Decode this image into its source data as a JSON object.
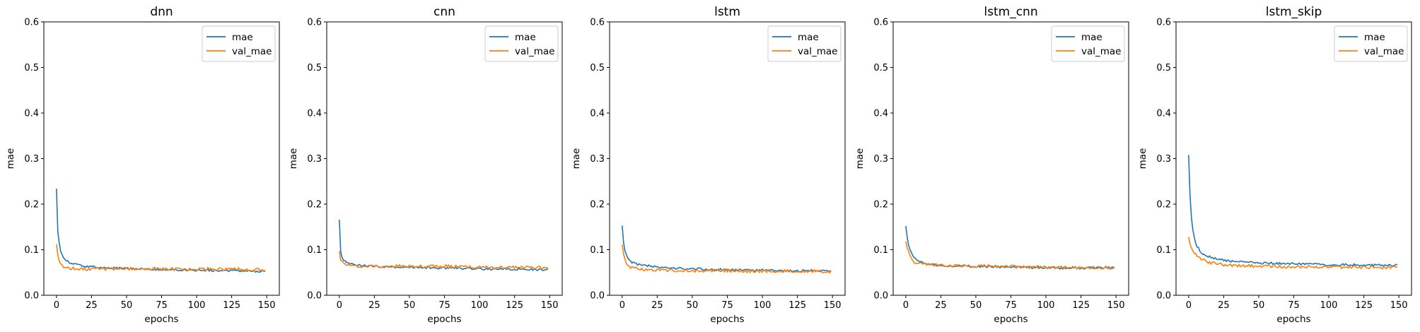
{
  "chart_data": [
    {
      "type": "line",
      "title": "dnn",
      "xlabel": "epochs",
      "ylabel": "mae",
      "xlim": [
        -9,
        159
      ],
      "ylim": [
        0.0,
        0.6
      ],
      "xticks": [
        0,
        25,
        50,
        75,
        100,
        125,
        150
      ],
      "yticks": [
        0.0,
        0.1,
        0.2,
        0.3,
        0.4,
        0.5,
        0.6
      ],
      "legend_position": "top-right",
      "grid": false,
      "x": [
        0,
        1,
        2,
        3,
        4,
        5,
        6,
        8,
        10,
        12,
        15,
        20,
        25,
        30,
        40,
        50,
        60,
        75,
        90,
        100,
        110,
        125,
        135,
        149
      ],
      "series": [
        {
          "name": "mae",
          "color": "#1f77b4",
          "values": [
            0.234,
            0.138,
            0.112,
            0.097,
            0.089,
            0.083,
            0.079,
            0.074,
            0.071,
            0.069,
            0.067,
            0.064,
            0.062,
            0.061,
            0.06,
            0.059,
            0.058,
            0.057,
            0.056,
            0.055,
            0.055,
            0.054,
            0.053,
            0.053
          ]
        },
        {
          "name": "val_mae",
          "color": "#ff7f0e",
          "values": [
            0.112,
            0.088,
            0.076,
            0.07,
            0.066,
            0.063,
            0.062,
            0.06,
            0.059,
            0.059,
            0.058,
            0.058,
            0.058,
            0.058,
            0.058,
            0.058,
            0.058,
            0.058,
            0.057,
            0.057,
            0.058,
            0.057,
            0.057,
            0.056
          ]
        }
      ]
    },
    {
      "type": "line",
      "title": "cnn",
      "xlabel": "epochs",
      "ylabel": "mae",
      "xlim": [
        -9,
        159
      ],
      "ylim": [
        0.0,
        0.6
      ],
      "xticks": [
        0,
        25,
        50,
        75,
        100,
        125,
        150
      ],
      "yticks": [
        0.0,
        0.1,
        0.2,
        0.3,
        0.4,
        0.5,
        0.6
      ],
      "legend_position": "top-right",
      "grid": false,
      "x": [
        0,
        1,
        2,
        3,
        4,
        5,
        6,
        8,
        10,
        12,
        15,
        20,
        25,
        30,
        40,
        50,
        60,
        75,
        90,
        100,
        110,
        125,
        135,
        149
      ],
      "series": [
        {
          "name": "mae",
          "color": "#1f77b4",
          "values": [
            0.166,
            0.095,
            0.082,
            0.077,
            0.074,
            0.072,
            0.071,
            0.069,
            0.068,
            0.067,
            0.066,
            0.065,
            0.064,
            0.063,
            0.062,
            0.062,
            0.061,
            0.06,
            0.059,
            0.058,
            0.058,
            0.057,
            0.057,
            0.056
          ]
        },
        {
          "name": "val_mae",
          "color": "#ff7f0e",
          "values": [
            0.097,
            0.077,
            0.072,
            0.069,
            0.068,
            0.067,
            0.066,
            0.065,
            0.065,
            0.064,
            0.064,
            0.064,
            0.064,
            0.064,
            0.064,
            0.064,
            0.063,
            0.064,
            0.062,
            0.062,
            0.061,
            0.062,
            0.061,
            0.061
          ]
        }
      ]
    },
    {
      "type": "line",
      "title": "lstm",
      "xlabel": "epochs",
      "ylabel": "mae",
      "xlim": [
        -9,
        159
      ],
      "ylim": [
        0.0,
        0.6
      ],
      "xticks": [
        0,
        25,
        50,
        75,
        100,
        125,
        150
      ],
      "yticks": [
        0.0,
        0.1,
        0.2,
        0.3,
        0.4,
        0.5,
        0.6
      ],
      "legend_position": "top-right",
      "grid": false,
      "x": [
        0,
        1,
        2,
        3,
        4,
        5,
        6,
        8,
        10,
        12,
        15,
        20,
        25,
        30,
        40,
        50,
        60,
        75,
        90,
        100,
        110,
        125,
        135,
        149
      ],
      "series": [
        {
          "name": "mae",
          "color": "#1f77b4",
          "values": [
            0.153,
            0.115,
            0.098,
            0.088,
            0.082,
            0.078,
            0.075,
            0.071,
            0.069,
            0.067,
            0.066,
            0.064,
            0.062,
            0.06,
            0.059,
            0.058,
            0.057,
            0.056,
            0.055,
            0.055,
            0.054,
            0.054,
            0.054,
            0.053
          ]
        },
        {
          "name": "val_mae",
          "color": "#ff7f0e",
          "values": [
            0.111,
            0.09,
            0.079,
            0.072,
            0.067,
            0.064,
            0.062,
            0.06,
            0.059,
            0.058,
            0.057,
            0.056,
            0.055,
            0.055,
            0.054,
            0.054,
            0.054,
            0.054,
            0.053,
            0.053,
            0.053,
            0.053,
            0.053,
            0.052
          ]
        }
      ]
    },
    {
      "type": "line",
      "title": "lstm_cnn",
      "xlabel": "epochs",
      "ylabel": "mae",
      "xlim": [
        -9,
        159
      ],
      "ylim": [
        0.0,
        0.6
      ],
      "xticks": [
        0,
        25,
        50,
        75,
        100,
        125,
        150
      ],
      "yticks": [
        0.0,
        0.1,
        0.2,
        0.3,
        0.4,
        0.5,
        0.6
      ],
      "legend_position": "top-right",
      "grid": false,
      "x": [
        0,
        1,
        2,
        3,
        4,
        5,
        6,
        8,
        10,
        12,
        15,
        20,
        25,
        30,
        40,
        50,
        60,
        75,
        90,
        100,
        110,
        125,
        135,
        149
      ],
      "series": [
        {
          "name": "mae",
          "color": "#1f77b4",
          "values": [
            0.152,
            0.128,
            0.112,
            0.101,
            0.092,
            0.086,
            0.081,
            0.076,
            0.073,
            0.071,
            0.069,
            0.067,
            0.066,
            0.065,
            0.064,
            0.063,
            0.063,
            0.062,
            0.061,
            0.061,
            0.06,
            0.06,
            0.06,
            0.06
          ]
        },
        {
          "name": "val_mae",
          "color": "#ff7f0e",
          "values": [
            0.118,
            0.103,
            0.094,
            0.087,
            0.081,
            0.077,
            0.074,
            0.071,
            0.069,
            0.068,
            0.067,
            0.066,
            0.066,
            0.065,
            0.065,
            0.064,
            0.064,
            0.063,
            0.062,
            0.062,
            0.061,
            0.061,
            0.061,
            0.061
          ]
        }
      ]
    },
    {
      "type": "line",
      "title": "lstm_skip",
      "xlabel": "epochs",
      "ylabel": "mae",
      "xlim": [
        -9,
        159
      ],
      "ylim": [
        0.0,
        0.6
      ],
      "xticks": [
        0,
        25,
        50,
        75,
        100,
        125,
        150
      ],
      "yticks": [
        0.0,
        0.1,
        0.2,
        0.3,
        0.4,
        0.5,
        0.6
      ],
      "legend_position": "top-right",
      "grid": false,
      "x": [
        0,
        1,
        2,
        3,
        4,
        5,
        6,
        8,
        10,
        12,
        15,
        20,
        25,
        30,
        40,
        50,
        60,
        75,
        90,
        100,
        110,
        125,
        135,
        149
      ],
      "series": [
        {
          "name": "mae",
          "color": "#1f77b4",
          "values": [
            0.308,
            0.218,
            0.172,
            0.145,
            0.128,
            0.117,
            0.108,
            0.098,
            0.092,
            0.088,
            0.084,
            0.08,
            0.077,
            0.075,
            0.073,
            0.071,
            0.07,
            0.069,
            0.068,
            0.067,
            0.067,
            0.066,
            0.066,
            0.066
          ]
        },
        {
          "name": "val_mae",
          "color": "#ff7f0e",
          "values": [
            0.128,
            0.112,
            0.103,
            0.097,
            0.092,
            0.089,
            0.086,
            0.082,
            0.078,
            0.075,
            0.072,
            0.069,
            0.067,
            0.066,
            0.065,
            0.064,
            0.063,
            0.063,
            0.062,
            0.062,
            0.062,
            0.062,
            0.061,
            0.061
          ]
        }
      ]
    }
  ]
}
